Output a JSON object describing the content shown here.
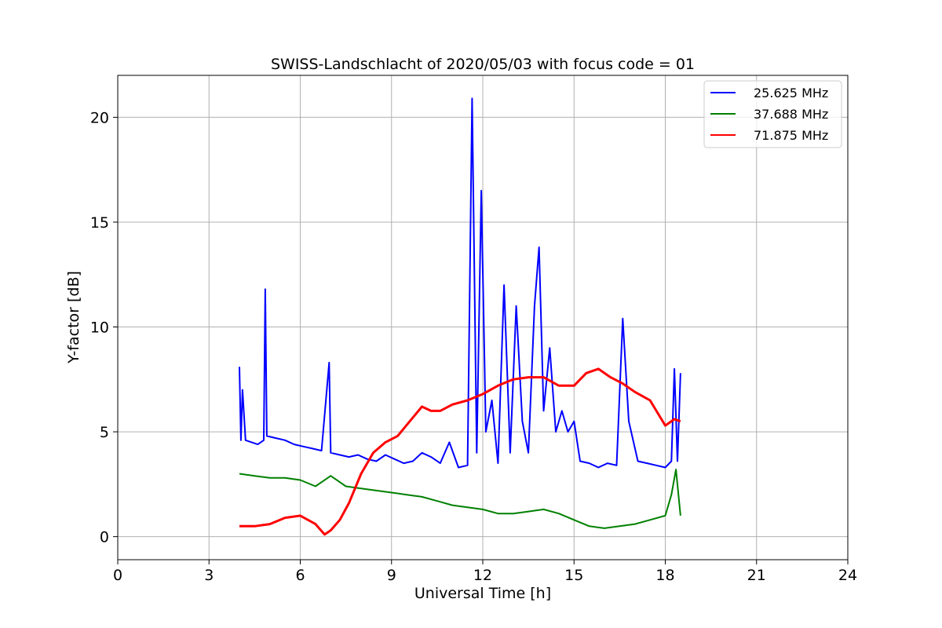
{
  "chart_data": {
    "type": "line",
    "title": "SWISS-Landschlacht of 2020/05/03 with focus code = 01",
    "xlabel": "Universal Time [h]",
    "ylabel": "Y-factor [dB]",
    "xlim": [
      0,
      24
    ],
    "ylim": [
      -1.1,
      22
    ],
    "xticks": [
      0,
      3,
      6,
      9,
      12,
      15,
      18,
      21,
      24
    ],
    "yticks": [
      0,
      5,
      10,
      15,
      20
    ],
    "grid": true,
    "legend_position": "top-right",
    "series": [
      {
        "name": "25.625 MHz",
        "color": "#0000ff",
        "x": [
          4.0,
          4.05,
          4.1,
          4.2,
          4.4,
          4.6,
          4.8,
          4.85,
          4.9,
          5.2,
          5.5,
          5.8,
          6.1,
          6.4,
          6.7,
          6.95,
          7.0,
          7.3,
          7.6,
          7.9,
          8.2,
          8.5,
          8.8,
          9.1,
          9.4,
          9.7,
          10.0,
          10.3,
          10.6,
          10.9,
          11.2,
          11.5,
          11.65,
          11.8,
          11.95,
          12.1,
          12.3,
          12.5,
          12.7,
          12.9,
          13.1,
          13.3,
          13.5,
          13.7,
          13.85,
          14.0,
          14.2,
          14.4,
          14.6,
          14.8,
          15.0,
          15.2,
          15.5,
          15.8,
          16.1,
          16.4,
          16.6,
          16.8,
          17.1,
          17.4,
          17.7,
          18.0,
          18.2,
          18.3,
          18.4,
          18.5
        ],
        "values": [
          8.1,
          4.6,
          7.0,
          4.6,
          4.5,
          4.4,
          4.6,
          11.8,
          4.8,
          4.7,
          4.6,
          4.4,
          4.3,
          4.2,
          4.1,
          8.3,
          4.0,
          3.9,
          3.8,
          3.9,
          3.7,
          3.6,
          3.9,
          3.7,
          3.5,
          3.6,
          4.0,
          3.8,
          3.5,
          4.5,
          3.3,
          3.4,
          20.9,
          4.0,
          16.5,
          5.0,
          6.5,
          3.5,
          12.0,
          4.0,
          11.0,
          5.5,
          4.0,
          11.0,
          13.8,
          6.0,
          9.0,
          5.0,
          6.0,
          5.0,
          5.5,
          3.6,
          3.5,
          3.3,
          3.5,
          3.4,
          10.4,
          5.5,
          3.6,
          3.5,
          3.4,
          3.3,
          3.6,
          8.0,
          3.6,
          7.8
        ]
      },
      {
        "name": "37.688 MHz",
        "color": "#008000",
        "x": [
          4.0,
          4.5,
          5.0,
          5.5,
          6.0,
          6.5,
          7.0,
          7.5,
          8.0,
          8.5,
          9.0,
          9.5,
          10.0,
          10.5,
          11.0,
          11.5,
          12.0,
          12.5,
          13.0,
          13.5,
          14.0,
          14.5,
          15.0,
          15.5,
          16.0,
          16.5,
          17.0,
          17.5,
          18.0,
          18.2,
          18.35,
          18.5
        ],
        "values": [
          3.0,
          2.9,
          2.8,
          2.8,
          2.7,
          2.4,
          2.9,
          2.4,
          2.3,
          2.2,
          2.1,
          2.0,
          1.9,
          1.7,
          1.5,
          1.4,
          1.3,
          1.1,
          1.1,
          1.2,
          1.3,
          1.1,
          0.8,
          0.5,
          0.4,
          0.5,
          0.6,
          0.8,
          1.0,
          2.0,
          3.2,
          1.0
        ]
      },
      {
        "name": "71.875 MHz",
        "color": "#ff0000",
        "x": [
          4.0,
          4.5,
          5.0,
          5.5,
          6.0,
          6.5,
          6.8,
          7.0,
          7.3,
          7.6,
          8.0,
          8.4,
          8.8,
          9.2,
          9.6,
          10.0,
          10.3,
          10.6,
          11.0,
          11.5,
          12.0,
          12.5,
          13.0,
          13.5,
          14.0,
          14.5,
          15.0,
          15.4,
          15.8,
          16.2,
          16.6,
          17.0,
          17.5,
          18.0,
          18.3,
          18.5
        ],
        "values": [
          0.5,
          0.5,
          0.6,
          0.9,
          1.0,
          0.6,
          0.1,
          0.3,
          0.8,
          1.6,
          3.0,
          4.0,
          4.5,
          4.8,
          5.5,
          6.2,
          6.0,
          6.0,
          6.3,
          6.5,
          6.8,
          7.2,
          7.5,
          7.6,
          7.6,
          7.2,
          7.2,
          7.8,
          8.0,
          7.6,
          7.3,
          6.9,
          6.5,
          5.3,
          5.6,
          5.5
        ]
      }
    ]
  }
}
